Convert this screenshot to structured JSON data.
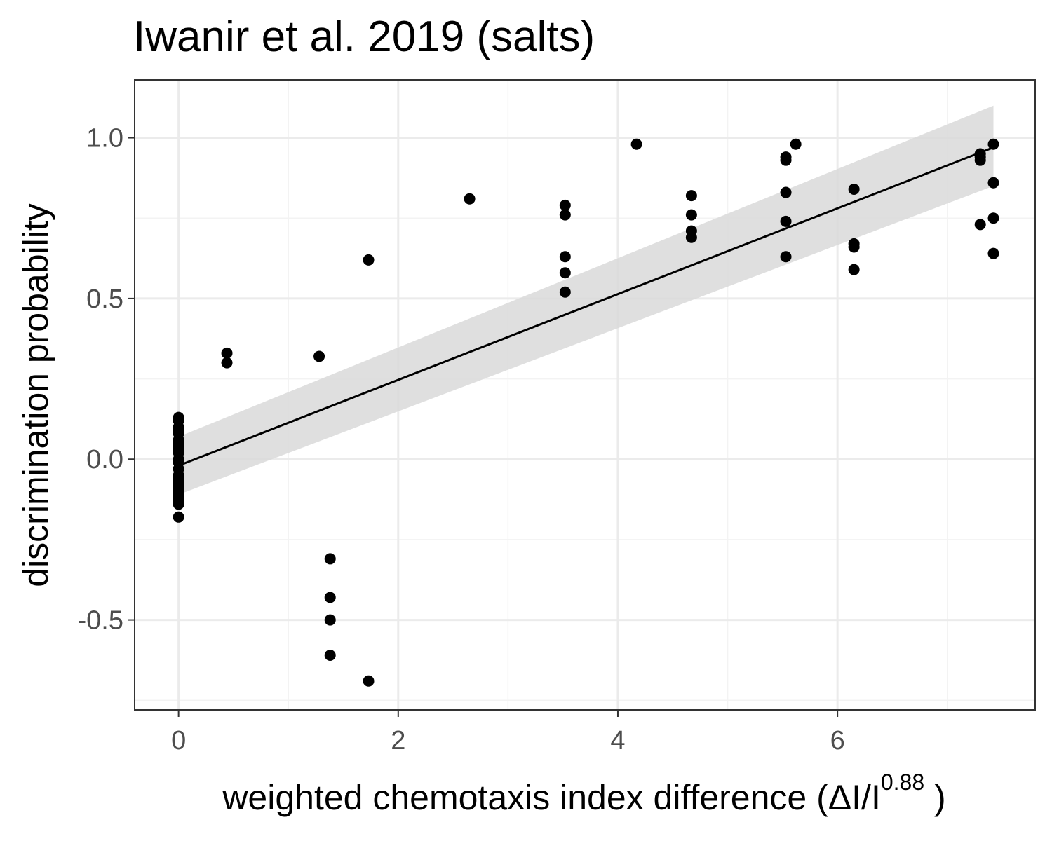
{
  "chart_data": {
    "type": "scatter",
    "title": "Iwanir et al. 2019 (salts)",
    "xlabel": {
      "prefix": "weighted  chemotaxis index  difference (ΔI/I",
      "superscript": "0.88",
      "suffix": " )"
    },
    "ylabel": "discrimination probability",
    "xlim": [
      -0.4,
      7.8
    ],
    "ylim": [
      -0.78,
      1.18
    ],
    "x_ticks": [
      0,
      2,
      4,
      6
    ],
    "x_tick_labels": [
      "0",
      "2",
      "4",
      "6"
    ],
    "y_ticks": [
      -0.5,
      0.0,
      0.5,
      1.0
    ],
    "y_tick_labels": [
      "-0.5",
      "0.0",
      "0.5",
      "1.0"
    ],
    "grid": true,
    "theme": "bw",
    "colors": {
      "points": "#000000",
      "line": "#000000",
      "ribbon": "#d9d9d9",
      "grid_major": "#ebebeb",
      "grid_minor": "#f3f3f3",
      "panel_border": "#333333"
    },
    "points": [
      {
        "x": 0,
        "y": 0.13
      },
      {
        "x": 0,
        "y": 0.12
      },
      {
        "x": 0,
        "y": 0.1
      },
      {
        "x": 0,
        "y": 0.09
      },
      {
        "x": 0,
        "y": 0.08
      },
      {
        "x": 0,
        "y": 0.06
      },
      {
        "x": 0,
        "y": 0.05
      },
      {
        "x": 0,
        "y": 0.04
      },
      {
        "x": 0,
        "y": 0.03
      },
      {
        "x": 0,
        "y": 0.02
      },
      {
        "x": 0,
        "y": 0.0
      },
      {
        "x": 0,
        "y": -0.01
      },
      {
        "x": 0,
        "y": -0.03
      },
      {
        "x": 0,
        "y": -0.05
      },
      {
        "x": 0,
        "y": -0.06
      },
      {
        "x": 0,
        "y": -0.07
      },
      {
        "x": 0,
        "y": -0.08
      },
      {
        "x": 0,
        "y": -0.09
      },
      {
        "x": 0,
        "y": -0.1
      },
      {
        "x": 0,
        "y": -0.11
      },
      {
        "x": 0,
        "y": -0.12
      },
      {
        "x": 0,
        "y": -0.13
      },
      {
        "x": 0,
        "y": -0.14
      },
      {
        "x": 0,
        "y": -0.18
      },
      {
        "x": 0.44,
        "y": 0.33
      },
      {
        "x": 0.44,
        "y": 0.3
      },
      {
        "x": 1.28,
        "y": 0.32
      },
      {
        "x": 1.38,
        "y": -0.31
      },
      {
        "x": 1.38,
        "y": -0.43
      },
      {
        "x": 1.38,
        "y": -0.5
      },
      {
        "x": 1.38,
        "y": -0.61
      },
      {
        "x": 1.73,
        "y": 0.62
      },
      {
        "x": 1.73,
        "y": -0.69
      },
      {
        "x": 2.65,
        "y": 0.81
      },
      {
        "x": 3.52,
        "y": 0.79
      },
      {
        "x": 3.52,
        "y": 0.76
      },
      {
        "x": 3.52,
        "y": 0.63
      },
      {
        "x": 3.52,
        "y": 0.58
      },
      {
        "x": 3.52,
        "y": 0.52
      },
      {
        "x": 4.17,
        "y": 0.98
      },
      {
        "x": 4.67,
        "y": 0.82
      },
      {
        "x": 4.67,
        "y": 0.76
      },
      {
        "x": 4.67,
        "y": 0.71
      },
      {
        "x": 4.67,
        "y": 0.69
      },
      {
        "x": 5.53,
        "y": 0.94
      },
      {
        "x": 5.53,
        "y": 0.93
      },
      {
        "x": 5.53,
        "y": 0.83
      },
      {
        "x": 5.53,
        "y": 0.74
      },
      {
        "x": 5.53,
        "y": 0.63
      },
      {
        "x": 5.62,
        "y": 0.98
      },
      {
        "x": 6.15,
        "y": 0.84
      },
      {
        "x": 6.15,
        "y": 0.67
      },
      {
        "x": 6.15,
        "y": 0.66
      },
      {
        "x": 6.15,
        "y": 0.59
      },
      {
        "x": 7.3,
        "y": 0.95
      },
      {
        "x": 7.3,
        "y": 0.94
      },
      {
        "x": 7.3,
        "y": 0.93
      },
      {
        "x": 7.3,
        "y": 0.73
      },
      {
        "x": 7.42,
        "y": 0.98
      },
      {
        "x": 7.42,
        "y": 0.86
      },
      {
        "x": 7.42,
        "y": 0.75
      },
      {
        "x": 7.42,
        "y": 0.64
      }
    ],
    "fit": {
      "type": "linear",
      "x_range": [
        0,
        7.42
      ],
      "y_at_x_min": -0.02,
      "y_at_x_max": 0.97,
      "ci_lower": [
        -0.11,
        0.85
      ],
      "ci_upper": [
        0.07,
        1.1
      ]
    }
  }
}
